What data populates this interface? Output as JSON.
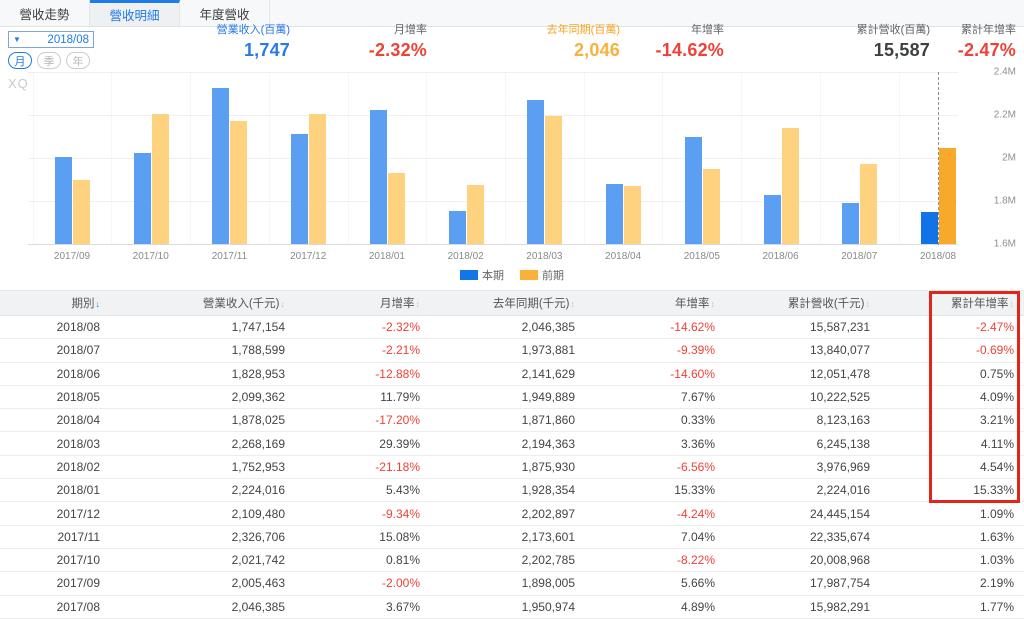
{
  "tabs": [
    {
      "id": "revenue-trend",
      "label": "營收走勢",
      "active": false
    },
    {
      "id": "revenue-detail",
      "label": "營收明細",
      "active": true
    },
    {
      "id": "annual-revenue",
      "label": "年度營收",
      "active": false
    }
  ],
  "controls": {
    "date_value": "2018/08",
    "dropdown_icon": "caret-down",
    "period_options": [
      {
        "id": "month",
        "label": "月",
        "active": true
      },
      {
        "id": "quarter",
        "label": "季",
        "active": false
      },
      {
        "id": "year",
        "label": "年",
        "active": false
      }
    ]
  },
  "stats": [
    {
      "id": "revenue",
      "label": "營業收入(百萬)",
      "value": "1,747",
      "label_color": "#2979e8",
      "value_color": "#2979e8"
    },
    {
      "id": "mom",
      "label": "月增率",
      "value": "-2.32%",
      "label_color": "#5f6368",
      "value_color": "#ef4136"
    },
    {
      "id": "last-year",
      "label": "去年同期(百萬)",
      "value": "2,046",
      "label_color": "#f5a623",
      "value_color": "#f8b13c"
    },
    {
      "id": "yoy",
      "label": "年增率",
      "value": "-14.62%",
      "label_color": "#5f6368",
      "value_color": "#ef4136"
    },
    {
      "id": "cum-revenue",
      "label": "累計營收(百萬)",
      "value": "15,587",
      "label_color": "#5f6368",
      "value_color": "#3c4043"
    },
    {
      "id": "cum-yoy",
      "label": "累計年增率",
      "value": "-2.47%",
      "label_color": "#5f6368",
      "value_color": "#ef4136"
    }
  ],
  "chart_data": {
    "type": "bar",
    "watermark": "XQ",
    "categories": [
      "2017/09",
      "2017/10",
      "2017/11",
      "2017/12",
      "2018/01",
      "2018/02",
      "2018/03",
      "2018/04",
      "2018/05",
      "2018/06",
      "2018/07",
      "2018/08"
    ],
    "series": [
      {
        "name": "本期",
        "color": "#5b9ff2",
        "active_color": "#1173e6",
        "legend_color": "#1276e8",
        "values": [
          2005463,
          2021742,
          2326706,
          2109480,
          2224016,
          1752953,
          2268169,
          1878025,
          2099362,
          1828953,
          1788599,
          1747154
        ]
      },
      {
        "name": "前期",
        "color": "#fed27f",
        "active_color": "#f8a82a",
        "legend_color": "#fbb03b",
        "values": [
          1898005,
          2202785,
          2173601,
          2202897,
          1928354,
          1875930,
          2194363,
          1871860,
          1949889,
          2141629,
          1973881,
          2046385
        ]
      }
    ],
    "ylim": [
      1600000,
      2400000
    ],
    "yticks": [
      {
        "v": 2400000,
        "label": "2.4M"
      },
      {
        "v": 2200000,
        "label": "2.2M"
      },
      {
        "v": 2000000,
        "label": "2M"
      },
      {
        "v": 1800000,
        "label": "1.8M"
      },
      {
        "v": 1600000,
        "label": "1.6M"
      }
    ],
    "highlight_index": 11,
    "legend_position": "bottom-center",
    "grid": true
  },
  "table": {
    "headers": [
      {
        "id": "period",
        "label": "期別"
      },
      {
        "id": "revenue",
        "label": "營業收入(千元)"
      },
      {
        "id": "mom",
        "label": "月增率"
      },
      {
        "id": "last-year",
        "label": "去年同期(千元)"
      },
      {
        "id": "yoy",
        "label": "年增率"
      },
      {
        "id": "cum-revenue",
        "label": "累計營收(千元)"
      },
      {
        "id": "cum-yoy",
        "label": "累計年增率"
      }
    ],
    "percent_columns": [
      2,
      4,
      6
    ],
    "rows": [
      [
        "2018/08",
        "1,747,154",
        "-2.32%",
        "2,046,385",
        "-14.62%",
        "15,587,231",
        "-2.47%"
      ],
      [
        "2018/07",
        "1,788,599",
        "-2.21%",
        "1,973,881",
        "-9.39%",
        "13,840,077",
        "-0.69%"
      ],
      [
        "2018/06",
        "1,828,953",
        "-12.88%",
        "2,141,629",
        "-14.60%",
        "12,051,478",
        "0.75%"
      ],
      [
        "2018/05",
        "2,099,362",
        "11.79%",
        "1,949,889",
        "7.67%",
        "10,222,525",
        "4.09%"
      ],
      [
        "2018/04",
        "1,878,025",
        "-17.20%",
        "1,871,860",
        "0.33%",
        "8,123,163",
        "3.21%"
      ],
      [
        "2018/03",
        "2,268,169",
        "29.39%",
        "2,194,363",
        "3.36%",
        "6,245,138",
        "4.11%"
      ],
      [
        "2018/02",
        "1,752,953",
        "-21.18%",
        "1,875,930",
        "-6.56%",
        "3,976,969",
        "4.54%"
      ],
      [
        "2018/01",
        "2,224,016",
        "5.43%",
        "1,928,354",
        "15.33%",
        "2,224,016",
        "15.33%"
      ],
      [
        "2017/12",
        "2,109,480",
        "-9.34%",
        "2,202,897",
        "-4.24%",
        "24,445,154",
        "1.09%"
      ],
      [
        "2017/11",
        "2,326,706",
        "15.08%",
        "2,173,601",
        "7.04%",
        "22,335,674",
        "1.63%"
      ],
      [
        "2017/10",
        "2,021,742",
        "0.81%",
        "2,202,785",
        "-8.22%",
        "20,008,968",
        "1.03%"
      ],
      [
        "2017/09",
        "2,005,463",
        "-2.00%",
        "1,898,005",
        "5.66%",
        "17,987,754",
        "2.19%"
      ],
      [
        "2017/08",
        "2,046,385",
        "3.67%",
        "1,950,974",
        "4.89%",
        "15,982,291",
        "1.77%"
      ]
    ],
    "highlight_column_label": "累計年增率",
    "highlight_row_count": 8
  },
  "colors": {
    "accent_blue": "#1e7be8",
    "negative_red": "#ef4136",
    "orange": "#f5a623",
    "highlight_box_red": "#e1251b"
  }
}
